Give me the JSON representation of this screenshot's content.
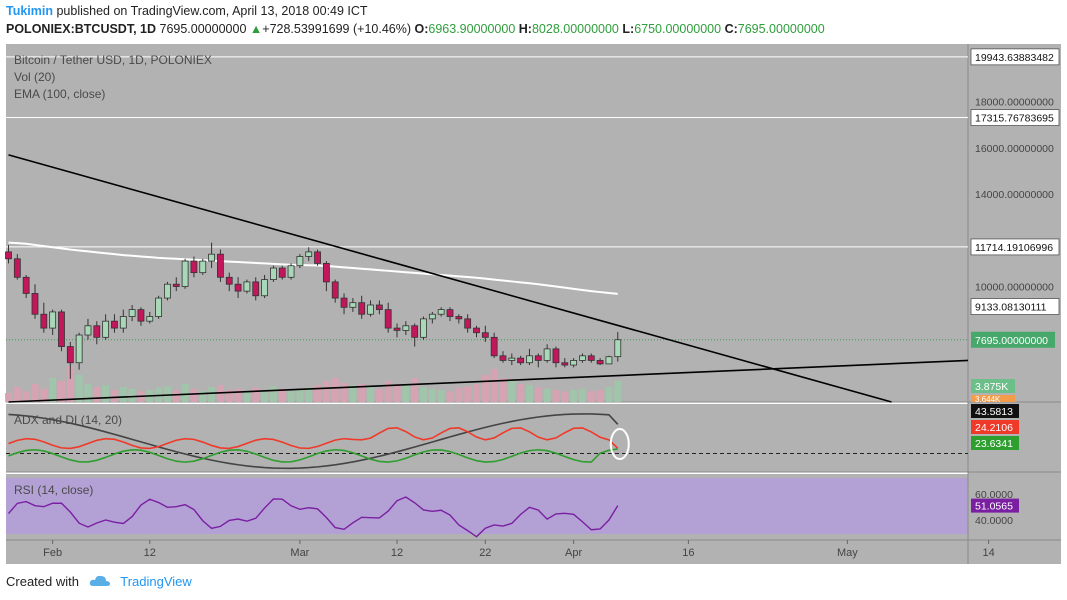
{
  "header": {
    "author": "Tukimin",
    "published_text": "published on TradingView.com, April 13, 2018 00:49 ICT",
    "symbol": "POLONIEX:BTCUSDT, 1D",
    "last": "7695.00000000",
    "change_arrow": "▲",
    "change": "+728.53991699 (+10.46%)",
    "o_label": "O:",
    "o_value": "6963.90000000",
    "h_label": "H:",
    "h_value": "8028.00000000",
    "l_label": "L:",
    "l_value": "6750.00000000",
    "c_label": "C:",
    "c_value": "7695.00000000"
  },
  "legend": {
    "title": "Bitcoin / Tether USD, 1D, POLONIEX",
    "vol": "Vol (20)",
    "ema": "EMA (100, close)",
    "adx": "ADX and DI (14, 20)",
    "rsi": "RSI (14, close)"
  },
  "footer": {
    "created_with": "Created with",
    "brand": "TradingView"
  },
  "colors": {
    "pane_bg": "#b2b2b2",
    "rsi_band": "#b39ddb",
    "up": "#2e8b57",
    "down": "#c2185b",
    "ema": "#ffffff",
    "adx": "#444444",
    "di_plus": "#2e9e2e",
    "di_minus": "#ef3a2a",
    "rsi_line": "#7b1fa2"
  },
  "chart_data": {
    "type": "candlestick",
    "price_axis": {
      "ticks": [
        "18000.00000000",
        "16000.00000000",
        "14000.00000000",
        "10000.00000000"
      ],
      "tick_values": [
        18000,
        16000,
        14000,
        10000
      ],
      "range": [
        5000,
        20500
      ],
      "markers": [
        {
          "label": "19943.63883482",
          "value": 19943.63883482,
          "kind": "line"
        },
        {
          "label": "17315.76783695",
          "value": 17315.76783695,
          "kind": "line"
        },
        {
          "label": "11714.19106996",
          "value": 11714.19106996,
          "kind": "line"
        },
        {
          "label": "9133.08130111",
          "value": 9133.08130111,
          "kind": "box"
        },
        {
          "label": "7695.00000000",
          "value": 7695,
          "kind": "last"
        }
      ],
      "volume_labels": [
        "3.875K",
        "3.644K"
      ]
    },
    "x_axis": {
      "labels": [
        "Feb",
        "12",
        "Mar",
        "12",
        "22",
        "Apr",
        "16",
        "May",
        "14"
      ],
      "label_days": [
        5,
        16,
        33,
        44,
        54,
        64,
        77,
        95,
        111
      ]
    },
    "candles_ohlc": [
      [
        11500,
        11800,
        11000,
        11200
      ],
      [
        11200,
        11400,
        10300,
        10400
      ],
      [
        10400,
        10500,
        9500,
        9700
      ],
      [
        9700,
        10100,
        8600,
        8800
      ],
      [
        8800,
        9300,
        8000,
        8200
      ],
      [
        8200,
        9000,
        7900,
        8900
      ],
      [
        8900,
        9000,
        7200,
        7400
      ],
      [
        7400,
        7600,
        6000,
        6700
      ],
      [
        6700,
        8000,
        6400,
        7900
      ],
      [
        7900,
        8600,
        7700,
        8300
      ],
      [
        8300,
        8500,
        7500,
        7800
      ],
      [
        7800,
        8800,
        7700,
        8500
      ],
      [
        8500,
        8800,
        8000,
        8200
      ],
      [
        8200,
        9000,
        8000,
        8700
      ],
      [
        8700,
        9200,
        8500,
        9000
      ],
      [
        9000,
        9100,
        8300,
        8500
      ],
      [
        8500,
        8900,
        8400,
        8700
      ],
      [
        8700,
        9600,
        8600,
        9500
      ],
      [
        9500,
        10200,
        9400,
        10100
      ],
      [
        10100,
        10400,
        9800,
        10000
      ],
      [
        10000,
        11200,
        9900,
        11100
      ],
      [
        11100,
        11300,
        10400,
        10600
      ],
      [
        10600,
        11200,
        10500,
        11100
      ],
      [
        11100,
        11900,
        10800,
        11400
      ],
      [
        11400,
        11600,
        10200,
        10400
      ],
      [
        10400,
        10600,
        9800,
        10100
      ],
      [
        10100,
        10400,
        9500,
        9800
      ],
      [
        9800,
        10300,
        9700,
        10200
      ],
      [
        10200,
        10400,
        9400,
        9600
      ],
      [
        9600,
        10500,
        9500,
        10300
      ],
      [
        10300,
        10900,
        10200,
        10800
      ],
      [
        10800,
        10900,
        10300,
        10400
      ],
      [
        10400,
        11000,
        10300,
        10900
      ],
      [
        10900,
        11400,
        10800,
        11300
      ],
      [
        11300,
        11700,
        11100,
        11500
      ],
      [
        11500,
        11600,
        10900,
        11000
      ],
      [
        11000,
        11100,
        9800,
        10200
      ],
      [
        10200,
        10300,
        9300,
        9500
      ],
      [
        9500,
        9700,
        8800,
        9100
      ],
      [
        9100,
        9500,
        8900,
        9300
      ],
      [
        9300,
        9600,
        8600,
        8800
      ],
      [
        8800,
        9400,
        8700,
        9200
      ],
      [
        9200,
        9400,
        8800,
        9000
      ],
      [
        9000,
        9300,
        8000,
        8200
      ],
      [
        8200,
        8400,
        7800,
        8100
      ],
      [
        8100,
        8500,
        7900,
        8300
      ],
      [
        8300,
        8400,
        7400,
        7800
      ],
      [
        7800,
        8700,
        7700,
        8600
      ],
      [
        8600,
        8900,
        8400,
        8800
      ],
      [
        8800,
        9100,
        8700,
        9000
      ],
      [
        9000,
        9100,
        8500,
        8700
      ],
      [
        8700,
        8800,
        8400,
        8600
      ],
      [
        8600,
        8800,
        8000,
        8200
      ],
      [
        8200,
        8300,
        7800,
        8000
      ],
      [
        8000,
        8300,
        7600,
        7800
      ],
      [
        7800,
        8000,
        6900,
        7000
      ],
      [
        7000,
        7200,
        6700,
        6800
      ],
      [
        6800,
        7100,
        6600,
        6900
      ],
      [
        6900,
        7000,
        6600,
        6700
      ],
      [
        6700,
        7300,
        6600,
        7000
      ],
      [
        7000,
        7100,
        6500,
        6800
      ],
      [
        6800,
        7500,
        6700,
        7300
      ],
      [
        7300,
        7400,
        6500,
        6700
      ],
      [
        6700,
        6900,
        6500,
        6600
      ],
      [
        6600,
        6900,
        6500,
        6800
      ],
      [
        6800,
        7100,
        6700,
        7000
      ],
      [
        7000,
        7100,
        6700,
        6800
      ],
      [
        6800,
        6900,
        6600,
        6650
      ],
      [
        6650,
        7000,
        6650,
        6960
      ],
      [
        6963.9,
        8028,
        6750,
        7695
      ]
    ],
    "ema_100": [
      11900,
      11880,
      11850,
      11800,
      11750,
      11700,
      11650,
      11600,
      11560,
      11520,
      11480,
      11440,
      11400,
      11360,
      11330,
      11300,
      11270,
      11240,
      11220,
      11200,
      11180,
      11160,
      11140,
      11120,
      11100,
      11080,
      11060,
      11040,
      11020,
      11000,
      10980,
      10960,
      10940,
      10930,
      10920,
      10910,
      10890,
      10860,
      10830,
      10800,
      10770,
      10740,
      10710,
      10680,
      10650,
      10620,
      10590,
      10560,
      10530,
      10500,
      10470,
      10440,
      10410,
      10380,
      10340,
      10300,
      10260,
      10220,
      10180,
      10140,
      10100,
      10050,
      10000,
      9950,
      9900,
      9850,
      9800,
      9760,
      9720,
      9680
    ],
    "trendlines": [
      {
        "name": "descending",
        "from": [
          0,
          15700
        ],
        "to": [
          100,
          5000
        ]
      },
      {
        "name": "ascending",
        "from": [
          0,
          5000
        ],
        "to": [
          124,
          6800
        ]
      }
    ],
    "volume": [
      15,
      25,
      18,
      30,
      22,
      40,
      35,
      60,
      45,
      30,
      25,
      28,
      20,
      25,
      22,
      18,
      20,
      24,
      26,
      20,
      30,
      22,
      18,
      25,
      28,
      20,
      22,
      18,
      24,
      20,
      26,
      22,
      18,
      20,
      24,
      28,
      35,
      40,
      32,
      28,
      30,
      25,
      22,
      35,
      30,
      28,
      40,
      25,
      22,
      20,
      18,
      24,
      26,
      30,
      45,
      55,
      40,
      35,
      30,
      28,
      25,
      22,
      20,
      18,
      20,
      22,
      18,
      20,
      25,
      35
    ],
    "adx_panel": {
      "range": [
        5,
        60
      ],
      "labels": [
        {
          "label": "43.5813",
          "value": 43.5813,
          "color": "#111111"
        },
        {
          "label": "24.2106",
          "value": 24.2106,
          "color": "#ef3a2a"
        },
        {
          "label": "23.6341",
          "value": 23.6341,
          "color": "#2e9e2e"
        }
      ],
      "threshold": 20
    },
    "rsi_panel": {
      "range": [
        25,
        75
      ],
      "ticks": [
        "60.0000",
        "40.0000"
      ],
      "tick_values": [
        60,
        40
      ],
      "last_label": "51.0565",
      "last_value": 51.0565,
      "band": [
        30,
        70
      ]
    }
  }
}
